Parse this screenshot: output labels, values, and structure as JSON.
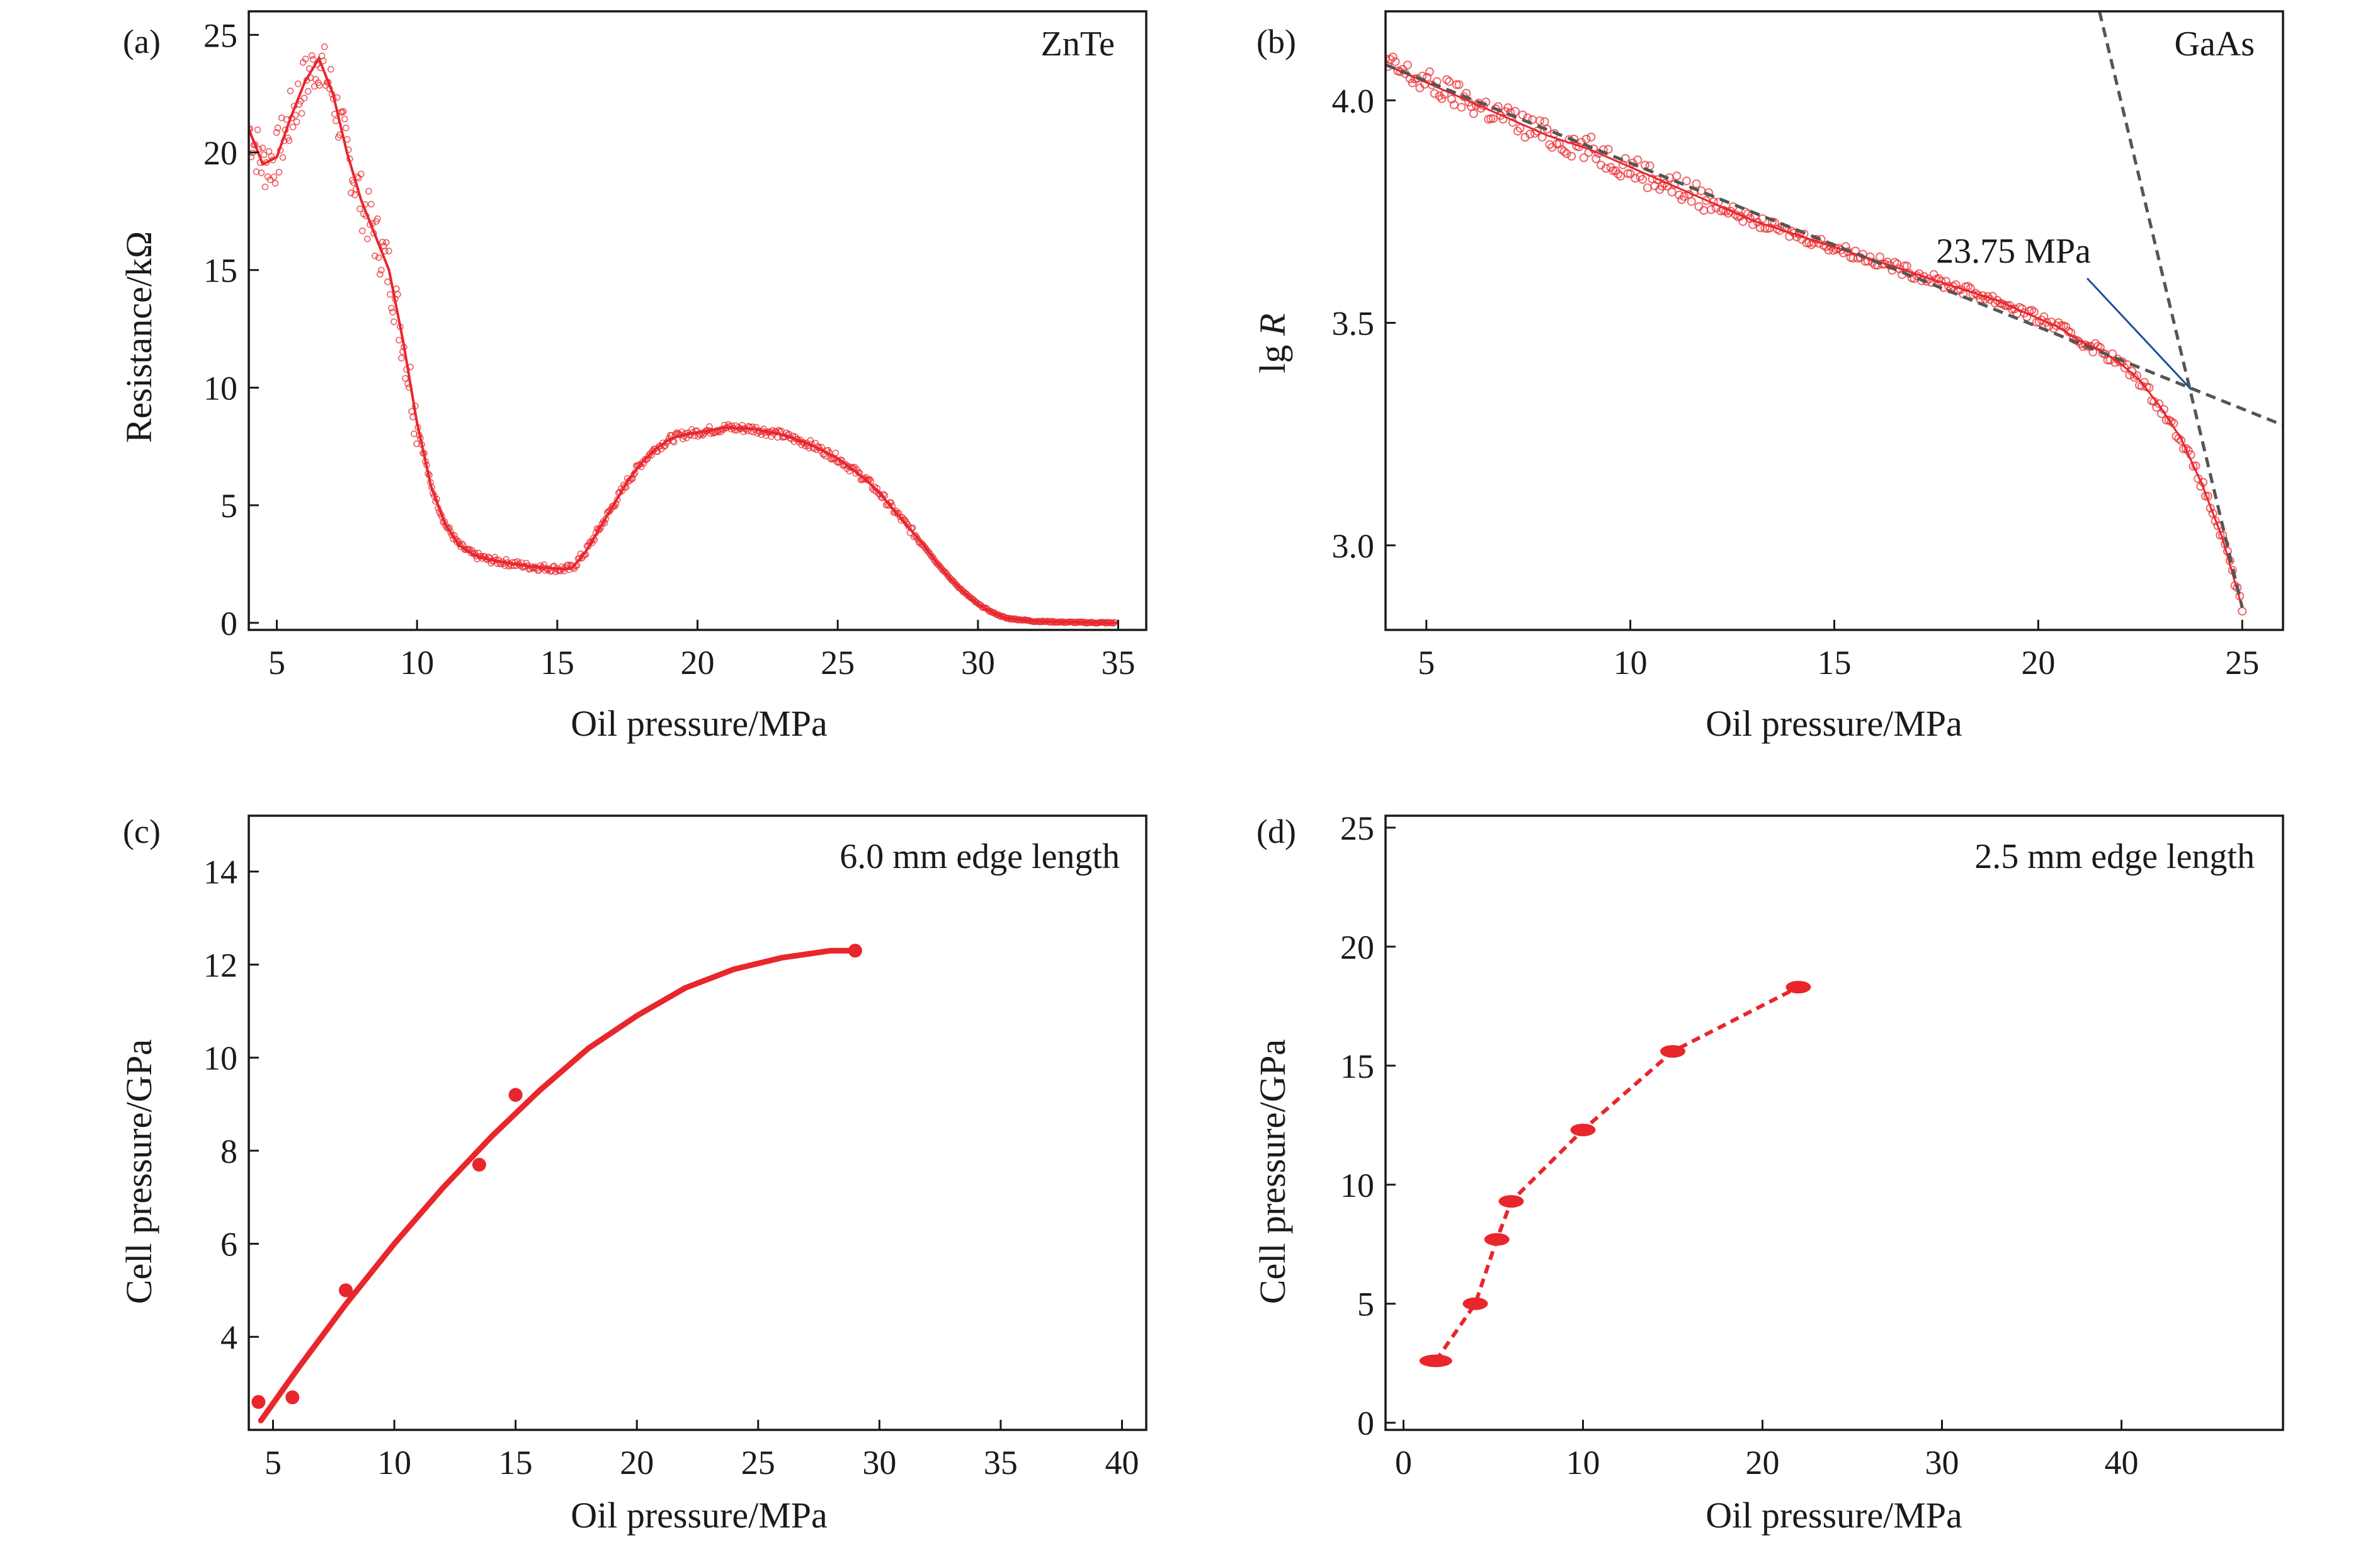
{
  "chart_data": [
    {
      "type": "scatter",
      "panel_label": "(a)",
      "annotation": "ZnTe",
      "xlabel": "Oil pressure/MPa",
      "ylabel": "Resistance/kΩ",
      "xlim": [
        4,
        36
      ],
      "ylim": [
        -0.3,
        26
      ],
      "xticks": [
        5,
        10,
        15,
        20,
        25,
        30,
        35
      ],
      "yticks": [
        0,
        5,
        10,
        15,
        20,
        25
      ],
      "color": "#e8262c",
      "series": [
        {
          "x": [
            4.0,
            4.5,
            5.0,
            5.5,
            6.0,
            6.5,
            7.0,
            7.5,
            8.0,
            8.5,
            9.0,
            9.5,
            10.0,
            10.5,
            11.0,
            11.5,
            12.0,
            12.5,
            13.0,
            13.5,
            14.0,
            14.5,
            15.0,
            15.5,
            16.0,
            16.5,
            17.0,
            17.5,
            18.0,
            18.5,
            19.0,
            19.5,
            20.0,
            21.0,
            22.0,
            23.0,
            24.0,
            25.0,
            26.0,
            26.5,
            27.0,
            27.5,
            28.0,
            28.5,
            29.0,
            29.5,
            30.0,
            30.5,
            31.0,
            32.0,
            33.0,
            34.0,
            35.0
          ],
          "y": [
            21.0,
            19.5,
            19.8,
            21.5,
            23.0,
            24.0,
            22.5,
            20.0,
            18.0,
            16.5,
            15.0,
            12.0,
            8.5,
            5.8,
            4.2,
            3.3,
            2.9,
            2.7,
            2.6,
            2.5,
            2.4,
            2.35,
            2.3,
            2.3,
            3.0,
            4.0,
            5.0,
            6.0,
            6.8,
            7.4,
            7.8,
            8.0,
            8.1,
            8.3,
            8.25,
            8.0,
            7.6,
            7.0,
            6.1,
            5.5,
            4.8,
            4.1,
            3.4,
            2.6,
            1.9,
            1.3,
            0.8,
            0.45,
            0.2,
            0.07,
            0.03,
            0.01,
            0.0
          ]
        }
      ]
    },
    {
      "type": "scatter",
      "panel_label": "(b)",
      "annotation": "GaAs",
      "point_annotation": "23.75 MPa",
      "xlabel": "Oil pressure/MPa",
      "ylabel_main": "lg ",
      "ylabel_italic": "R",
      "xlim": [
        4,
        26
      ],
      "ylim": [
        2.81,
        4.2
      ],
      "xticks": [
        5,
        10,
        15,
        20,
        25
      ],
      "yticks": [
        3.0,
        3.5,
        4.0
      ],
      "ytick_labels": [
        "3.0",
        "3.5",
        "4.0"
      ],
      "color": "#e8262c",
      "fit_line_color": "#555555",
      "pointer_color": "#1f4e9b",
      "series": [
        {
          "x": [
            4.0,
            5.0,
            6.0,
            7.0,
            8.0,
            9.0,
            10.0,
            11.0,
            12.0,
            13.0,
            14.0,
            15.0,
            16.0,
            17.0,
            18.0,
            19.0,
            20.0,
            20.5,
            21.0,
            21.5,
            22.0,
            22.5,
            23.0,
            23.5,
            24.0,
            24.5,
            25.0
          ],
          "y": [
            4.08,
            4.04,
            4.0,
            3.96,
            3.92,
            3.89,
            3.85,
            3.81,
            3.77,
            3.73,
            3.7,
            3.67,
            3.64,
            3.61,
            3.58,
            3.55,
            3.51,
            3.49,
            3.46,
            3.44,
            3.41,
            3.37,
            3.31,
            3.24,
            3.14,
            3.02,
            2.86
          ]
        }
      ],
      "fit_lines": [
        {
          "x": [
            4.0,
            26.0
          ],
          "y": [
            4.08,
            3.27
          ]
        },
        {
          "x": [
            21.5,
            25.0
          ],
          "y": [
            4.2,
            2.86
          ]
        }
      ],
      "pointer": {
        "from": [
          21.2,
          3.6
        ],
        "to": [
          23.75,
          3.35
        ]
      }
    },
    {
      "type": "scatter",
      "panel_label": "(c)",
      "annotation": "6.0 mm edge length",
      "xlabel": "Oil pressure/MPa",
      "ylabel": "Cell pressure/GPa",
      "xlim": [
        4,
        41
      ],
      "ylim": [
        2,
        15.2
      ],
      "xticks": [
        5,
        10,
        15,
        20,
        25,
        30,
        35,
        40
      ],
      "yticks": [
        4,
        6,
        8,
        10,
        12,
        14
      ],
      "color": "#e8262c",
      "series": [
        {
          "x": [
            4.4,
            5.8,
            8.0,
            13.5,
            15.0,
            29.0
          ],
          "y": [
            2.6,
            2.7,
            5.0,
            7.7,
            9.2,
            12.3
          ]
        }
      ],
      "fit_curve": {
        "x": [
          4.5,
          6,
          8,
          10,
          12,
          14,
          16,
          18,
          20,
          22,
          24,
          26,
          28,
          29
        ],
        "y": [
          2.2,
          3.3,
          4.7,
          6.0,
          7.2,
          8.3,
          9.3,
          10.2,
          10.9,
          11.5,
          11.9,
          12.15,
          12.3,
          12.3
        ]
      }
    },
    {
      "type": "line",
      "panel_label": "(d)",
      "annotation": "2.5 mm edge length",
      "xlabel": "Oil pressure/MPa",
      "ylabel": "Cell pressure/GPa",
      "xlim": [
        -1,
        49
      ],
      "ylim": [
        -0.3,
        25.5
      ],
      "xticks": [
        0,
        10,
        20,
        30,
        40
      ],
      "yticks": [
        0,
        5,
        10,
        15,
        20,
        25
      ],
      "color": "#e8262c",
      "series": [
        {
          "x": [
            1.8,
            4.0,
            5.2,
            6.0,
            10.0,
            15.0,
            22.0
          ],
          "y": [
            2.6,
            5.0,
            7.7,
            9.3,
            12.3,
            15.6,
            18.3
          ]
        }
      ]
    }
  ]
}
